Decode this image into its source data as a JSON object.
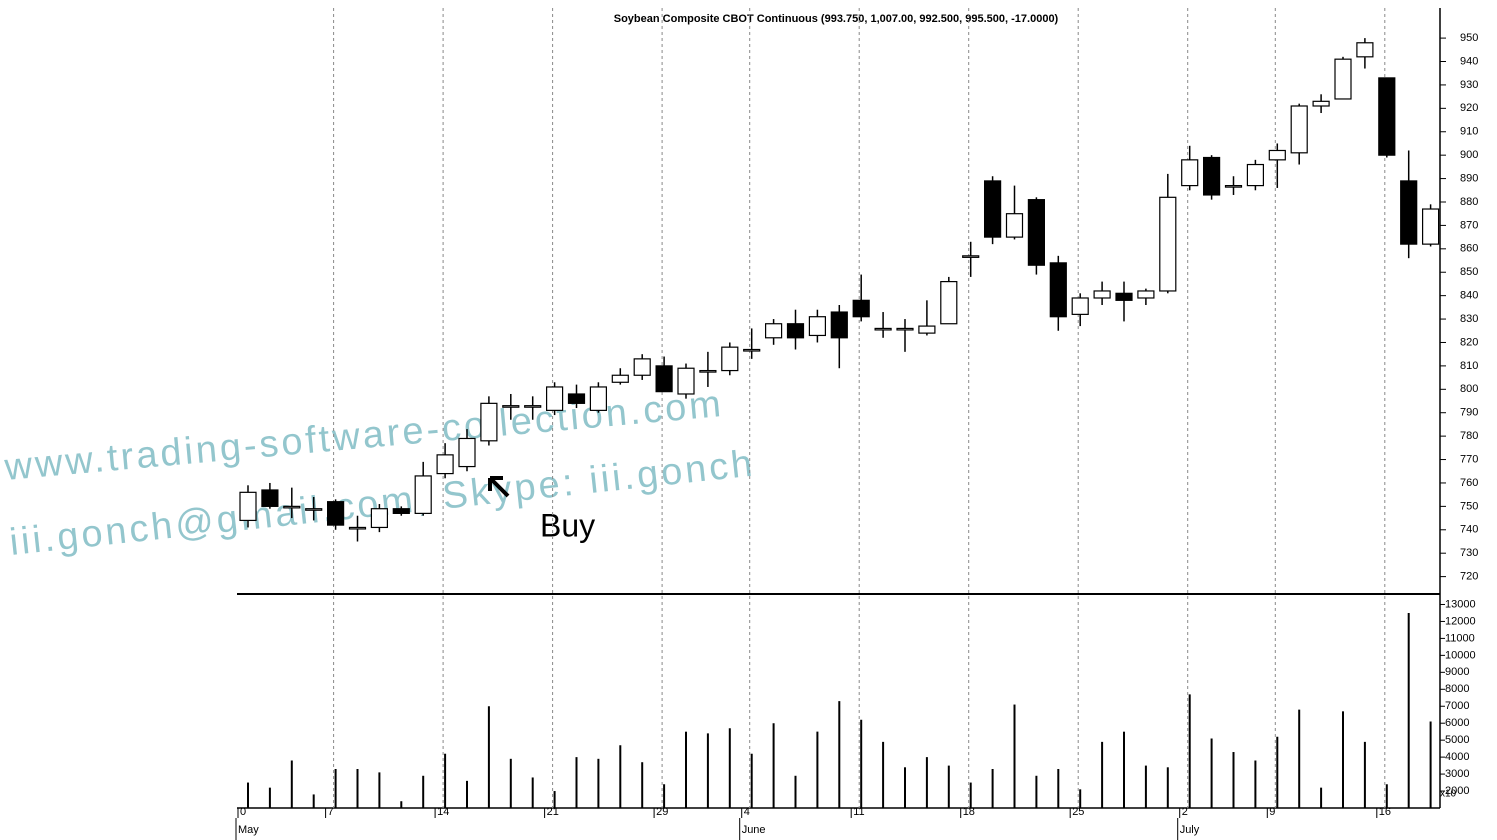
{
  "chart_data": {
    "type": "candlestick",
    "title": "Soybean Composite CBOT Continuous (993.750, 1,007.00, 992.500, 995.500, -17.0000)",
    "categories": [
      "0",
      null,
      null,
      null,
      "7",
      null,
      null,
      null,
      null,
      "14",
      null,
      null,
      null,
      null,
      "21",
      null,
      null,
      null,
      null,
      "29",
      null,
      null,
      null,
      "4",
      null,
      null,
      null,
      null,
      "11",
      null,
      null,
      null,
      null,
      "18",
      null,
      null,
      null,
      null,
      "25",
      null,
      null,
      null,
      null,
      "2",
      null,
      null,
      null,
      "9",
      null,
      null,
      null,
      null,
      "16",
      null,
      null
    ],
    "months": [
      "May",
      null,
      null,
      null,
      null,
      null,
      null,
      null,
      null,
      null,
      null,
      null,
      null,
      null,
      null,
      null,
      null,
      null,
      null,
      null,
      null,
      null,
      null,
      "June",
      null,
      null,
      null,
      null,
      null,
      null,
      null,
      null,
      null,
      null,
      null,
      null,
      null,
      null,
      null,
      null,
      null,
      null,
      null,
      "July",
      null,
      null,
      null,
      null,
      null,
      null,
      null,
      null,
      null,
      null,
      null
    ],
    "open": [
      744,
      757,
      750,
      749,
      752,
      741,
      741,
      749,
      747,
      764,
      767,
      778,
      793,
      793,
      791,
      798,
      791,
      803,
      806,
      810,
      798,
      808,
      808,
      817,
      822,
      828,
      823,
      833,
      838,
      826,
      826,
      824,
      828,
      857,
      889,
      865,
      881,
      854,
      832,
      839,
      841,
      839,
      842,
      887,
      899,
      887,
      887,
      898,
      901,
      921,
      924,
      942,
      933,
      889,
      862
    ],
    "high": [
      759,
      760,
      758,
      754,
      753,
      746,
      751,
      750,
      769,
      777,
      783,
      797,
      798,
      797,
      803,
      802,
      803,
      809,
      815,
      814,
      811,
      816,
      820,
      826,
      830,
      834,
      834,
      836,
      849,
      833,
      830,
      838,
      848,
      863,
      891,
      887,
      882,
      857,
      841,
      846,
      846,
      843,
      892,
      904,
      900,
      891,
      898,
      905,
      922,
      926,
      942,
      950,
      933,
      902,
      879
    ],
    "low": [
      741,
      749,
      745,
      744,
      740,
      735,
      739,
      746,
      746,
      762,
      765,
      776,
      787,
      787,
      789,
      792,
      790,
      802,
      804,
      799,
      796,
      801,
      806,
      813,
      819,
      817,
      820,
      809,
      829,
      822,
      816,
      823,
      828,
      848,
      862,
      864,
      849,
      825,
      827,
      836,
      829,
      836,
      841,
      885,
      881,
      883,
      885,
      886,
      896,
      918,
      924,
      937,
      899,
      856,
      861
    ],
    "close": [
      756,
      750,
      750,
      749,
      742,
      741,
      749,
      747,
      763,
      772,
      779,
      794,
      793,
      793,
      801,
      794,
      801,
      806,
      813,
      799,
      809,
      808,
      818,
      817,
      828,
      822,
      831,
      822,
      831,
      826,
      826,
      827,
      846,
      857,
      865,
      875,
      853,
      831,
      839,
      842,
      838,
      842,
      882,
      898,
      883,
      887,
      896,
      902,
      921,
      923,
      941,
      948,
      900,
      862,
      877
    ],
    "ylim": [
      713,
      962
    ],
    "yticks": [
      720,
      730,
      740,
      750,
      760,
      770,
      780,
      790,
      800,
      810,
      820,
      830,
      840,
      850,
      860,
      870,
      880,
      890,
      900,
      910,
      920,
      930,
      940,
      950
    ],
    "up_color": "#ffffff",
    "down_color": "#000000",
    "grid": true,
    "volume": {
      "values": [
        2500,
        2200,
        3800,
        1800,
        3300,
        3300,
        3100,
        1400,
        2900,
        4200,
        2600,
        7000,
        3900,
        2800,
        2000,
        4000,
        3900,
        4700,
        3700,
        2400,
        5500,
        5400,
        5700,
        4200,
        6000,
        2900,
        5500,
        7300,
        6200,
        4900,
        3400,
        4000,
        3500,
        2500,
        3300,
        7100,
        2900,
        3300,
        2100,
        4900,
        5500,
        3500,
        3400,
        7700,
        5100,
        4300,
        3800,
        5200,
        6800,
        2200,
        6700,
        4900,
        2400,
        12500,
        6100
      ],
      "ylim": [
        1000,
        13500
      ],
      "yticks": [
        2000,
        3000,
        4000,
        5000,
        6000,
        7000,
        8000,
        9000,
        10000,
        11000,
        12000,
        13000
      ],
      "axis_label": "x10",
      "color": "#000000"
    },
    "annotation": "Buy",
    "watermarks": [
      "www.trading-software-collection.com",
      "iii.gonch@gmail.com, Skype: iii.gonch"
    ]
  }
}
